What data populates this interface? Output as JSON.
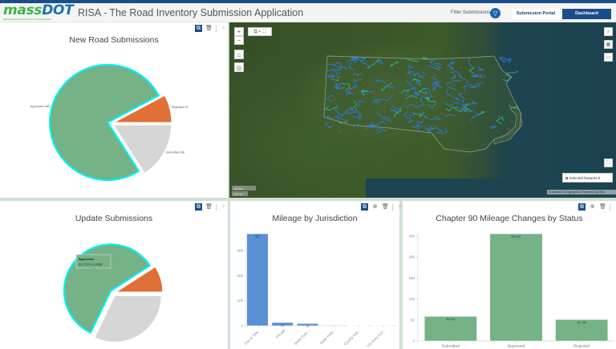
{
  "header": {
    "logo_main_mass": "mass",
    "logo_main_dot": "DOT",
    "logo_sub": "Massachusetts Department of Transportation",
    "app_short": "RISA",
    "app_separator": "-",
    "app_title": "The Road Inventory Submission Application",
    "filter_label": "Filter Submissions",
    "filter_icon": "funnel-icon",
    "submission_portal": "Submission Portal",
    "dashboard": "Dashboard"
  },
  "colors": {
    "brand_blue": "#1a4e8a",
    "approved": "#75b285",
    "rejected": "#e07035",
    "submitted": "#d6d6d6",
    "highlight": "#00f0f0",
    "bar_blue": "#5b8fd4"
  },
  "map": {
    "zoom_in": "+",
    "zoom_out": "−",
    "scale_km": "50 km",
    "scale_mi": "20 mi",
    "selected_features": "Selected features:0",
    "attribution": "Earthstar Geographics   Powered by Esri"
  },
  "chart_data": [
    {
      "type": "pie",
      "title": "New Road Submissions",
      "categories": [
        "Approved",
        "Rejected",
        "Submitted"
      ],
      "values": [
        460,
        47,
        96
      ],
      "labels": [
        "Approved 460",
        "Rejected 47",
        "Submitted 96"
      ],
      "selected": "Approved"
    },
    {
      "type": "pie",
      "title": "Update Submissions",
      "categories": [
        "Approved",
        "Rejected",
        "Submitted"
      ],
      "values": [
        1859,
        290,
        1017
      ],
      "selected": "Approved",
      "tooltip": {
        "title": "Approved",
        "value": "58.711% (1,859)"
      }
    },
    {
      "type": "bar",
      "title": "Mileage by Jurisdiction",
      "categories": [
        "City or Tow...",
        "Private",
        "State Park ...",
        "State Instit...",
        "County Inst...",
        "US Army Cor..."
      ],
      "values": [
        367,
        13,
        9,
        2,
        0.5,
        0.3
      ],
      "data_labels": [
        "367",
        "13",
        "9",
        "",
        "",
        ""
      ],
      "ylim": [
        0,
        367
      ],
      "yticks": [
        0,
        100,
        200,
        300
      ]
    },
    {
      "type": "bar",
      "title": "Chapter 90 Mileage Changes by Status",
      "categories": [
        "Submitted",
        "Approved",
        "Rejected"
      ],
      "values": [
        58.619,
        255.347,
        51.133
      ],
      "data_labels": [
        "58.619",
        "255.347",
        "51.133"
      ],
      "ylim": [
        0,
        255.347
      ],
      "yticks": [
        0,
        50,
        100,
        150,
        200,
        250
      ]
    }
  ]
}
